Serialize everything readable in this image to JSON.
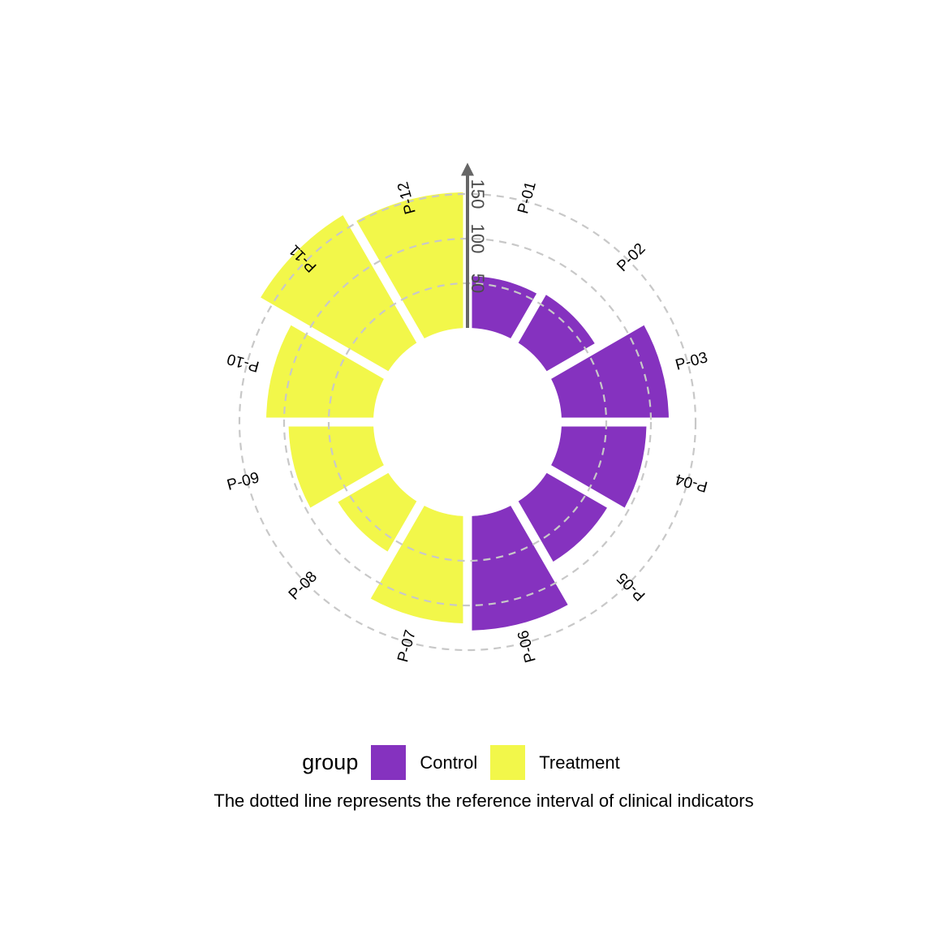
{
  "chart_data": {
    "type": "circular-bar",
    "categories": [
      "P-01",
      "P-02",
      "P-03",
      "P-04",
      "P-05",
      "P-06",
      "P-07",
      "P-08",
      "P-09",
      "P-10",
      "P-11",
      "P-12"
    ],
    "values": [
      58,
      62,
      120,
      95,
      78,
      128,
      120,
      65,
      95,
      120,
      165,
      152
    ],
    "groups": [
      "Control",
      "Control",
      "Control",
      "Control",
      "Control",
      "Control",
      "Treatment",
      "Treatment",
      "Treatment",
      "Treatment",
      "Treatment",
      "Treatment"
    ],
    "radial_axis": {
      "ticks": [
        50,
        100,
        150
      ]
    },
    "reference_circles": [
      50,
      100,
      150
    ],
    "inner_offset": 0,
    "ylim": [
      0,
      175
    ]
  },
  "legend": {
    "title": "group",
    "items": [
      {
        "label": "Control",
        "color": "#8532BF"
      },
      {
        "label": "Treatment",
        "color": "#F2F74A"
      }
    ]
  },
  "caption": "The dotted line represents the reference interval of clinical indicators"
}
